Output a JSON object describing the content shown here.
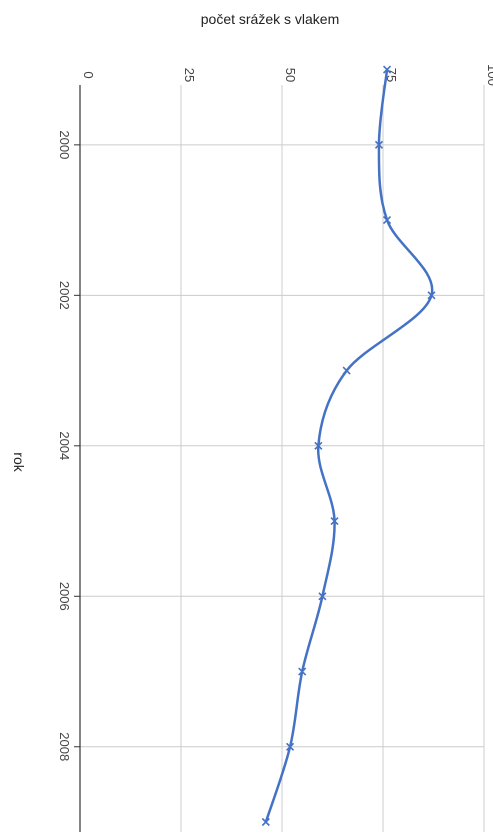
{
  "chart_data": {
    "type": "line",
    "orientation": "rotated-90",
    "title": "počet srážek s vlakem",
    "xlabel": "rok",
    "ylabel": "",
    "x": [
      1999,
      2000,
      2001,
      2002,
      2003,
      2004,
      2005,
      2006,
      2007,
      2008,
      2009
    ],
    "xlim": [
      1998.5,
      2009
    ],
    "x_ticks": [
      2000,
      2002,
      2004,
      2006,
      2008
    ],
    "x_tick_labels": [
      "2000",
      "2002",
      "2004",
      "2006",
      "2008"
    ],
    "ylim": [
      0,
      100
    ],
    "y_ticks": [
      0,
      25,
      50,
      75,
      100
    ],
    "y_tick_labels": [
      "0",
      "25",
      "50",
      "75",
      "100"
    ],
    "grid": true,
    "series": [
      {
        "name": "",
        "values": [
          76,
          74,
          76,
          87,
          66,
          59,
          63,
          60,
          55,
          52,
          46
        ],
        "color": "#4472c4",
        "marker": "x",
        "smooth": true
      }
    ]
  }
}
